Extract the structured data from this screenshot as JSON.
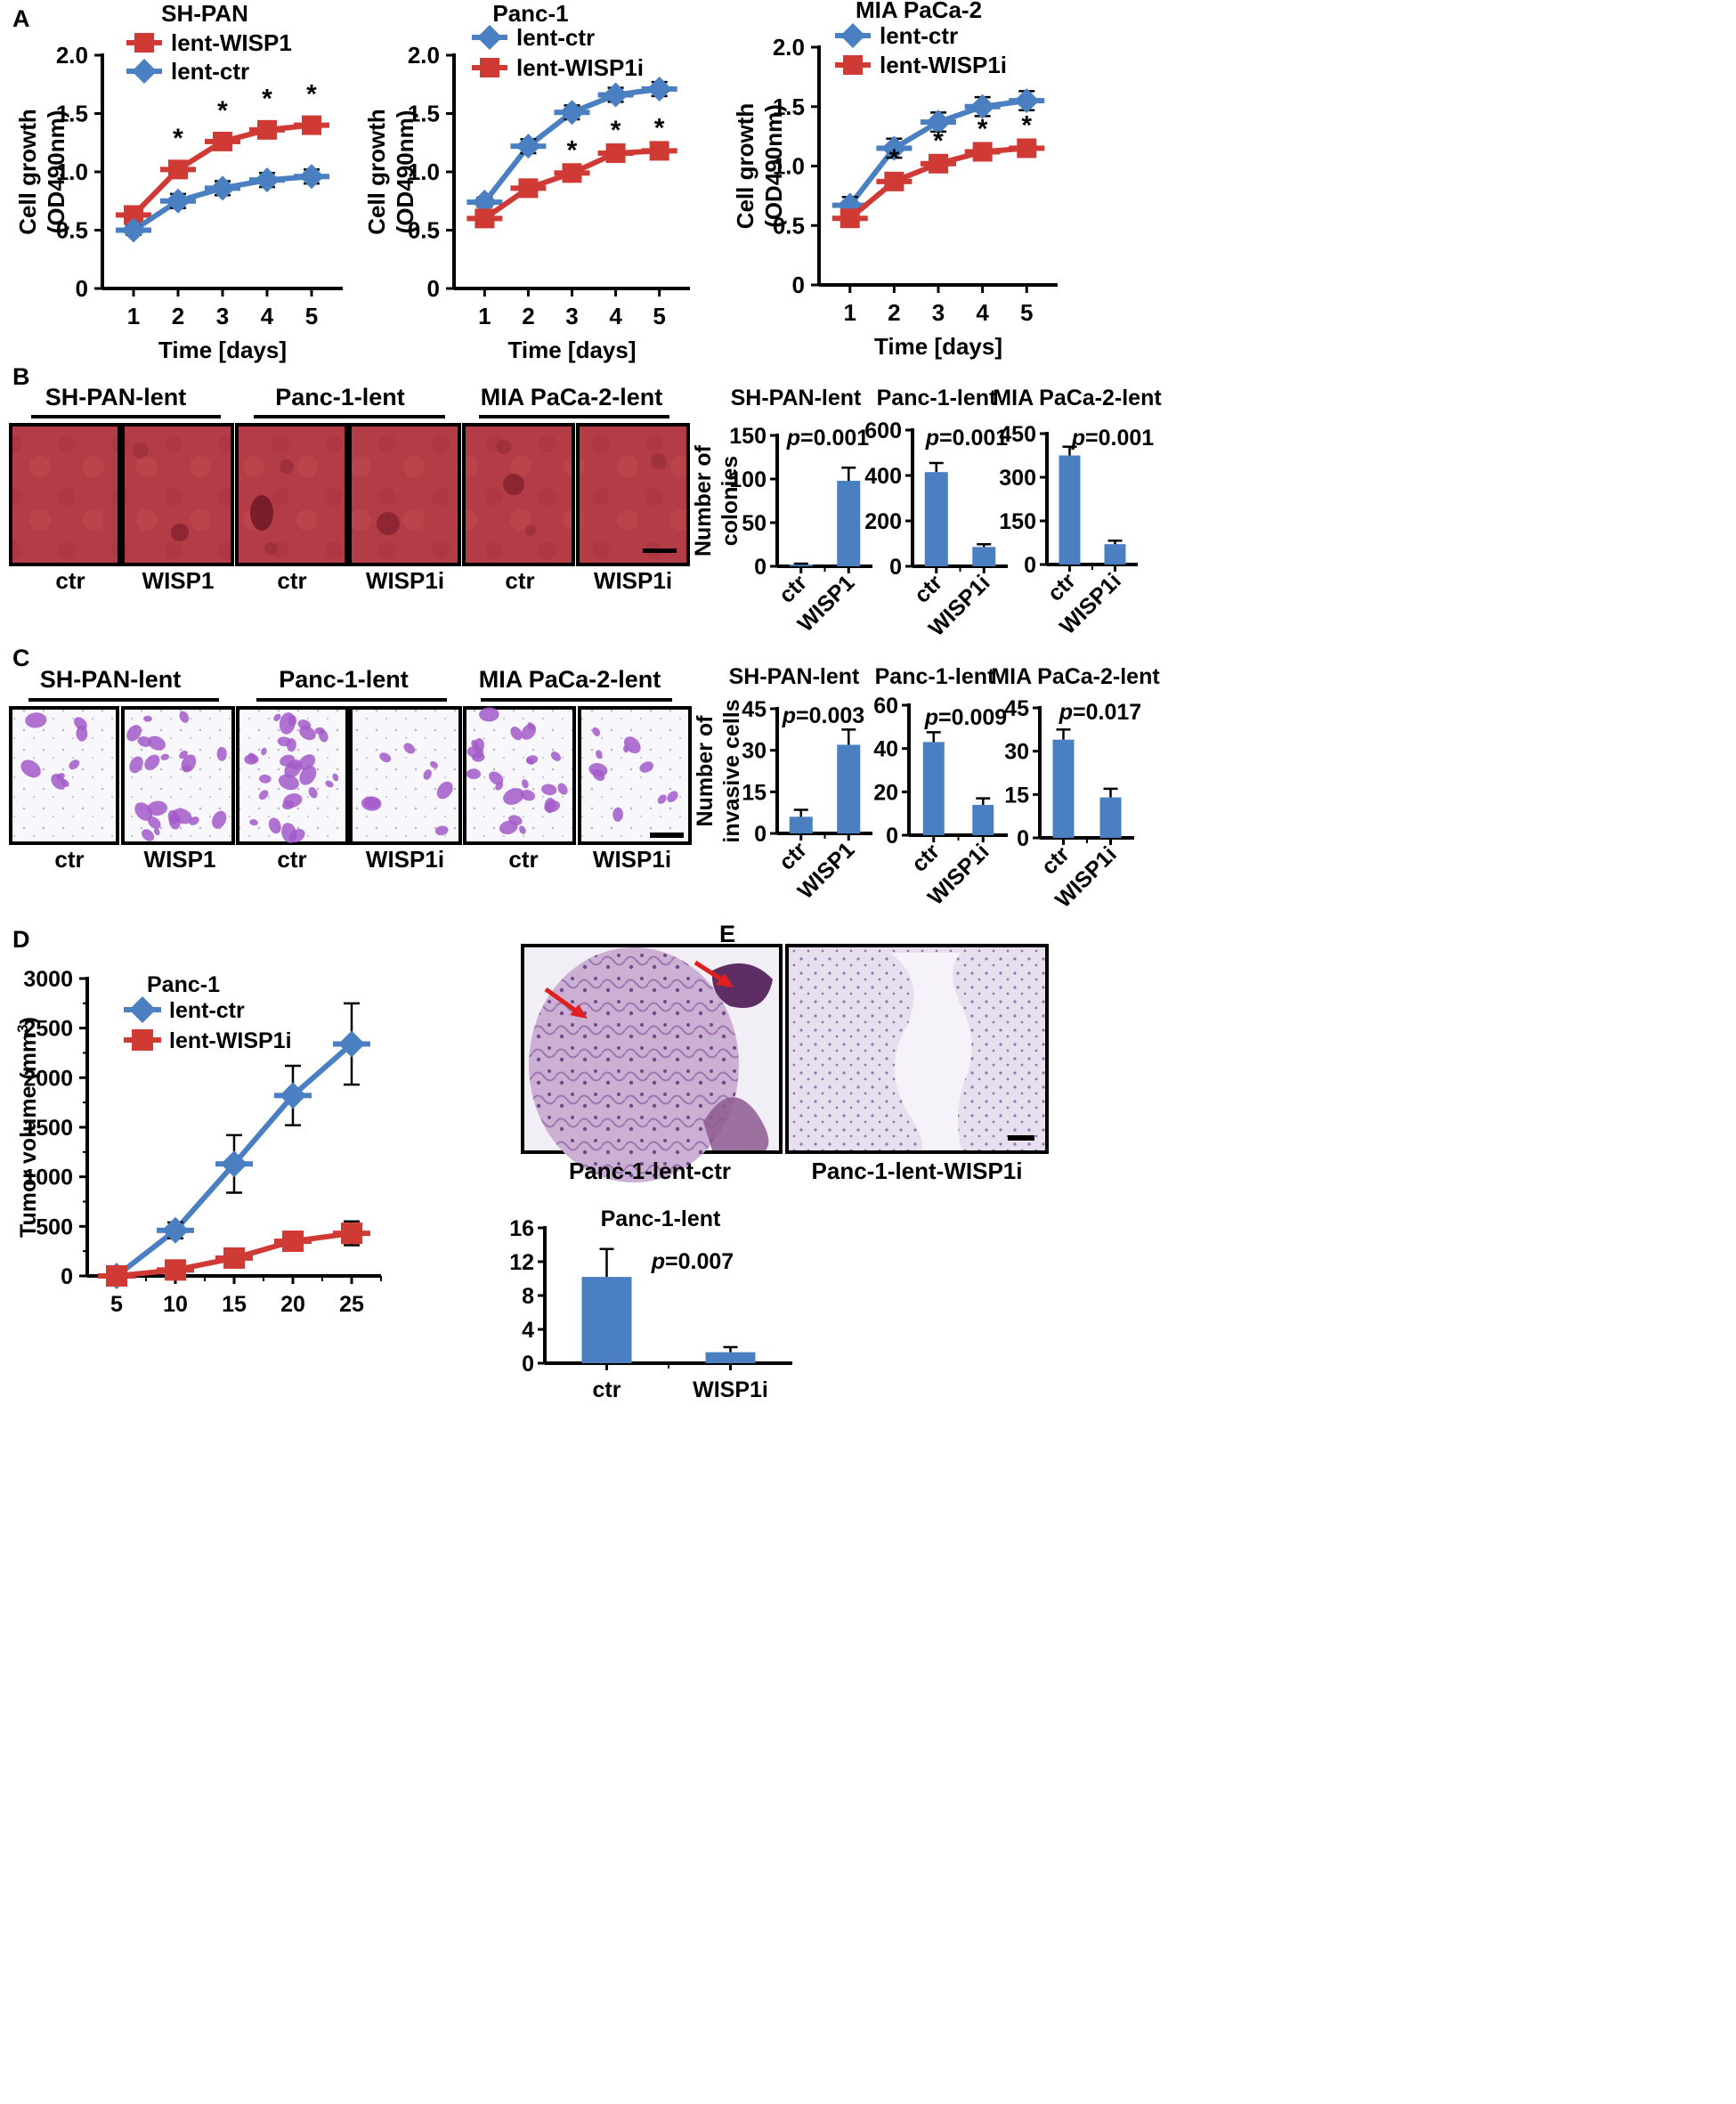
{
  "colors": {
    "blue": "#4A7FC1",
    "red": "#D03A34",
    "axis": "#000000",
    "tissue": "#B33D44",
    "invasion_bg": "#FAFAFC",
    "cell": "#A35BC9",
    "he": "#C7A6CF"
  },
  "panels": {
    "A": {
      "letter": "A"
    },
    "B": {
      "letter": "B",
      "image_titles": [
        "SH-PAN-lent",
        "Panc-1-lent",
        "MIA PaCa-2-lent"
      ],
      "image_labels": [
        "ctr",
        "WISP1",
        "ctr",
        "WISP1i",
        "ctr",
        "WISP1i"
      ]
    },
    "C": {
      "letter": "C",
      "image_titles": [
        "SH-PAN-lent",
        "Panc-1-lent",
        "MIA PaCa-2-lent"
      ],
      "image_labels": [
        "ctr",
        "WISP1",
        "ctr",
        "WISP1i",
        "ctr",
        "WISP1i"
      ]
    },
    "D": {
      "letter": "D"
    },
    "E": {
      "letter": "E",
      "image_labels": [
        "Panc-1-lent-ctr",
        "Panc-1-lent-WISP1i"
      ]
    }
  },
  "chart_data": [
    {
      "id": "A1",
      "type": "line",
      "title": "SH-PAN",
      "xlabel": "Time [days]",
      "ylabel": [
        "Cell growth",
        "(OD490nm)"
      ],
      "x": [
        1,
        2,
        3,
        4,
        5
      ],
      "ylim": [
        0,
        2.0
      ],
      "yticks": [
        "0",
        "0.5",
        "1.0",
        "1.5",
        "2.0"
      ],
      "legend": [
        "lent-WISP1",
        "lent-ctr"
      ],
      "series": [
        {
          "name": "lent-WISP1",
          "color": "red",
          "marker": "square",
          "values": [
            0.63,
            1.02,
            1.26,
            1.36,
            1.4
          ],
          "err": [
            0.05,
            0.07,
            0.07,
            0.07,
            0.07
          ]
        },
        {
          "name": "lent-ctr",
          "color": "blue",
          "marker": "diamond",
          "values": [
            0.5,
            0.75,
            0.86,
            0.93,
            0.96
          ],
          "err": [
            0.04,
            0.06,
            0.06,
            0.06,
            0.06
          ]
        }
      ],
      "stars": [
        2,
        3,
        4,
        5
      ],
      "star_series": 0,
      "star": "*"
    },
    {
      "id": "A2",
      "type": "line",
      "title": "Panc-1",
      "xlabel": "Time [days]",
      "ylabel": [
        "Cell growth",
        "(OD490nm)"
      ],
      "x": [
        1,
        2,
        3,
        4,
        5
      ],
      "ylim": [
        0,
        2.0
      ],
      "yticks": [
        "0",
        "0.5",
        "1.0",
        "1.5",
        "2.0"
      ],
      "legend": [
        "lent-ctr",
        "lent-WISP1i"
      ],
      "series": [
        {
          "name": "lent-ctr",
          "color": "blue",
          "marker": "diamond",
          "values": [
            0.74,
            1.22,
            1.51,
            1.66,
            1.71
          ],
          "err": [
            0.04,
            0.06,
            0.06,
            0.06,
            0.06
          ]
        },
        {
          "name": "lent-WISP1i",
          "color": "red",
          "marker": "square",
          "values": [
            0.6,
            0.86,
            0.99,
            1.16,
            1.18
          ],
          "err": [
            0.04,
            0.06,
            0.06,
            0.06,
            0.06
          ]
        }
      ],
      "stars": [
        3,
        4,
        5
      ],
      "star_series": 1,
      "star": "*"
    },
    {
      "id": "A3",
      "type": "line",
      "title": "MIA PaCa-2",
      "xlabel": "Time [days]",
      "ylabel": [
        "Cell growth",
        "(OD490nm)"
      ],
      "x": [
        1,
        2,
        3,
        4,
        5
      ],
      "ylim": [
        0,
        2.0
      ],
      "yticks": [
        "0",
        "0.5",
        "1.0",
        "1.5",
        "2.0"
      ],
      "legend": [
        "lent-ctr",
        "lent-WISP1i"
      ],
      "series": [
        {
          "name": "lent-ctr",
          "color": "blue",
          "marker": "diamond",
          "values": [
            0.67,
            1.15,
            1.37,
            1.5,
            1.55
          ],
          "err": [
            0.07,
            0.08,
            0.08,
            0.08,
            0.08
          ]
        },
        {
          "name": "lent-WISP1i",
          "color": "red",
          "marker": "square",
          "values": [
            0.56,
            0.87,
            1.02,
            1.12,
            1.15
          ],
          "err": [
            0.04,
            0.06,
            0.06,
            0.06,
            0.06
          ]
        }
      ],
      "stars": [
        2,
        3,
        4,
        5
      ],
      "star_series": 1,
      "star": "*"
    },
    {
      "id": "B1",
      "type": "bar",
      "title": "SH-PAN-lent",
      "ylabel": [
        "Number of",
        "colonies"
      ],
      "categories": [
        "ctr",
        "WISP1"
      ],
      "values": [
        2,
        98
      ],
      "err": [
        1,
        15
      ],
      "ylim": [
        0,
        150
      ],
      "yticks": [
        "0",
        "50",
        "100",
        "150"
      ],
      "pvalue": "p=0.001"
    },
    {
      "id": "B2",
      "type": "bar",
      "title": "Panc-1-lent",
      "categories": [
        "ctr",
        "WISP1i"
      ],
      "values": [
        415,
        85
      ],
      "err": [
        40,
        12
      ],
      "ylim": [
        0,
        600
      ],
      "yticks": [
        "0",
        "200",
        "400",
        "600"
      ],
      "pvalue": "p=0.001"
    },
    {
      "id": "B3",
      "type": "bar",
      "title": "MIA PaCa-2-lent",
      "categories": [
        "ctr",
        "WISP1i"
      ],
      "values": [
        375,
        70
      ],
      "err": [
        30,
        12
      ],
      "ylim": [
        0,
        450
      ],
      "yticks": [
        "0",
        "150",
        "300",
        "450"
      ],
      "pvalue": "p=0.001"
    },
    {
      "id": "C1",
      "type": "bar",
      "title": "SH-PAN-lent",
      "ylabel": [
        "Number of",
        "invasive  cells"
      ],
      "categories": [
        "ctr",
        "WISP1"
      ],
      "values": [
        6,
        32
      ],
      "err": [
        2.5,
        5.5
      ],
      "ylim": [
        0,
        45
      ],
      "yticks": [
        "0",
        "15",
        "30",
        "45"
      ],
      "pvalue": "p=0.003"
    },
    {
      "id": "C2",
      "type": "bar",
      "title": "Panc-1-lent",
      "categories": [
        "ctr",
        "WISP1i"
      ],
      "values": [
        43,
        14
      ],
      "err": [
        4.5,
        3
      ],
      "ylim": [
        0,
        60
      ],
      "yticks": [
        "0",
        "20",
        "40",
        "60"
      ],
      "pvalue": "p=0.009"
    },
    {
      "id": "C3",
      "type": "bar",
      "title": "MIA PaCa-2-lent",
      "categories": [
        "ctr",
        "WISP1i"
      ],
      "values": [
        34,
        14
      ],
      "err": [
        3.5,
        3
      ],
      "ylim": [
        0,
        45
      ],
      "yticks": [
        "0",
        "15",
        "30",
        "45"
      ],
      "pvalue": "p=0.017"
    },
    {
      "id": "D",
      "type": "line",
      "title": "Panc-1",
      "xlabel": "",
      "ylabel_main": "Tumor volume (mm",
      "ylabel_sup": "3",
      "ylabel_tail": ")",
      "x": [
        5,
        10,
        15,
        20,
        25
      ],
      "xlim": [
        2.5,
        27.5
      ],
      "ylim": [
        0,
        3000
      ],
      "yticks": [
        "0",
        "500",
        "1000",
        "1500",
        "2000",
        "2500",
        "3000"
      ],
      "legend": [
        "lent-ctr",
        "lent-WISP1i"
      ],
      "series": [
        {
          "name": "lent-ctr",
          "color": "blue",
          "marker": "diamond",
          "values": [
            0,
            460,
            1130,
            1820,
            2340
          ],
          "err": [
            0,
            80,
            290,
            300,
            410
          ]
        },
        {
          "name": "lent-WISP1i",
          "color": "red",
          "marker": "square",
          "values": [
            0,
            60,
            180,
            350,
            430
          ],
          "err": [
            0,
            30,
            40,
            70,
            120
          ]
        }
      ]
    },
    {
      "id": "E",
      "type": "bar",
      "title": "Panc-1-lent",
      "categories": [
        "ctr",
        "WISP1i"
      ],
      "values": [
        10.2,
        1.3
      ],
      "err": [
        3.3,
        0.6
      ],
      "ylim": [
        0,
        16
      ],
      "yticks": [
        "0",
        "4",
        "8",
        "12",
        "16"
      ],
      "pvalue": "p=0.007"
    }
  ]
}
